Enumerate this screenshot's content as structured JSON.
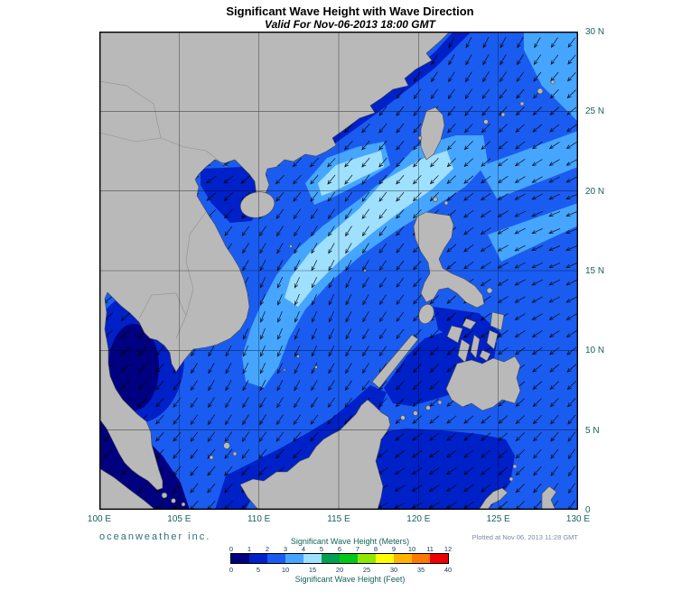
{
  "header": {
    "title": "Significant Wave Height with Wave Direction",
    "subtitle": "Valid For Nov-06-2013 18:00 GMT"
  },
  "map": {
    "lon_ticks": [
      "100 E",
      "105 E",
      "110 E",
      "115 E",
      "120 E",
      "125 E",
      "130 E"
    ],
    "lat_ticks": [
      "30 N",
      "25 N",
      "20 N",
      "15 N",
      "10 N",
      "5 N",
      "0"
    ],
    "region": "South China Sea and Western Pacific, 100E-130E / 0-30N"
  },
  "legend": {
    "meters_label": "Significant Wave Height (Meters)",
    "feet_label": "Significant Wave Height (Feet)",
    "meters_ticks": [
      "0",
      "1",
      "2",
      "3",
      "4",
      "5",
      "6",
      "7",
      "8",
      "9",
      "10",
      "11",
      "12"
    ],
    "feet_ticks": [
      "0",
      "5",
      "10",
      "15",
      "20",
      "25",
      "30",
      "35",
      "40"
    ],
    "colors": [
      "#000080",
      "#0020c8",
      "#1a5cf0",
      "#46a5ff",
      "#9fe0ff",
      "#00a050",
      "#00c818",
      "#90e800",
      "#ffff00",
      "#ffb400",
      "#ff7800",
      "#f00000"
    ]
  },
  "footer": {
    "branding": "oceanweather inc.",
    "plotted": "Plotted at Nov 06, 2013 11:28 GMT"
  },
  "theme": {
    "axis_label_color": "#14635a",
    "branding_color": "#2e6e7e",
    "plotted_color": "#7d88ad",
    "land_color": "#b9b9b9"
  },
  "wave_field": {
    "units": "meters",
    "regions": [
      {
        "area": "central South China Sea east of Vietnam",
        "height_m": "4-5",
        "direction": "toward SW"
      },
      {
        "area": "northern South China Sea / Luzon Strait / Taiwan Strait",
        "height_m": "3-4",
        "direction": "toward SW"
      },
      {
        "area": "northeast Pacific corner",
        "height_m": "3-4",
        "direction": "toward SW"
      },
      {
        "area": "open Pacific east of Philippines",
        "height_m": "2-3",
        "direction": "toward WSW"
      },
      {
        "area": "southern South China Sea",
        "height_m": "2-3",
        "direction": "toward SW"
      },
      {
        "area": "Gulf of Thailand",
        "height_m": "0-2",
        "direction": "toward SSW"
      },
      {
        "area": "Sulu and Celebes Seas",
        "height_m": "1-2",
        "direction": "toward W"
      },
      {
        "area": "Malacca Strait",
        "height_m": "0-1",
        "direction": "calm"
      }
    ]
  }
}
